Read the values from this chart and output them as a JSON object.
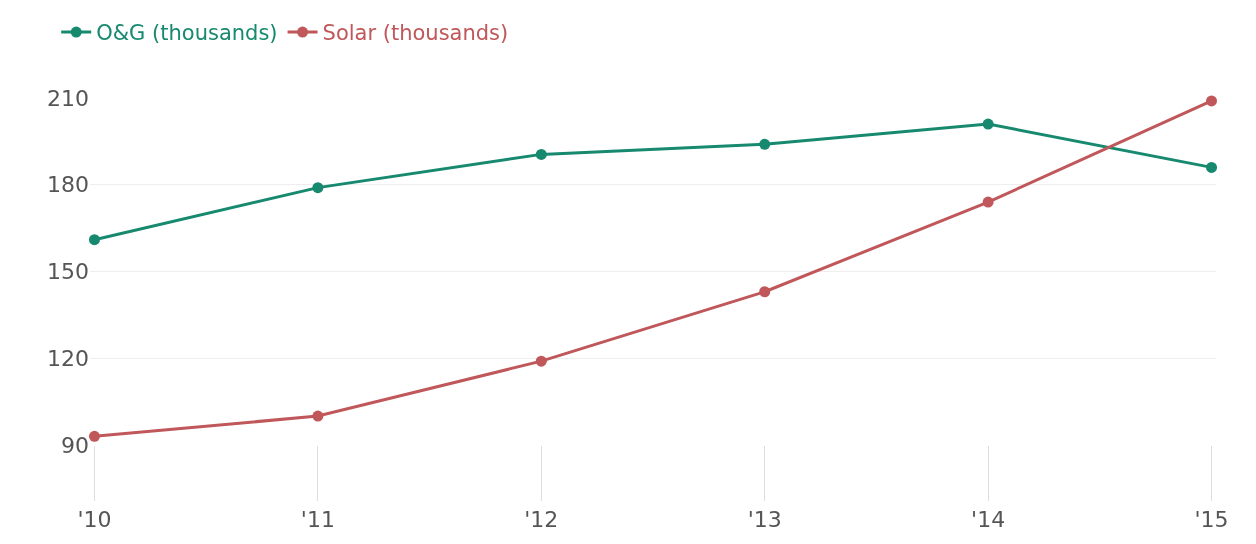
{
  "chart_data": {
    "type": "line",
    "categories": [
      "'10",
      "'11",
      "'12",
      "'13",
      "'14",
      "'15"
    ],
    "series": [
      {
        "name": "O&G (thousands)",
        "color": "#16896f",
        "values": [
          161,
          179,
          190.5,
          194,
          201,
          186
        ]
      },
      {
        "name": "Solar (thousands)",
        "color": "#c0575a",
        "values": [
          93,
          100,
          119,
          143,
          174,
          209
        ]
      }
    ],
    "ylim": [
      90,
      210
    ],
    "yticks": [
      90,
      120,
      150,
      180,
      210
    ],
    "grid": "y",
    "legend": "top left",
    "marker": "circle",
    "line_style": "solid"
  }
}
